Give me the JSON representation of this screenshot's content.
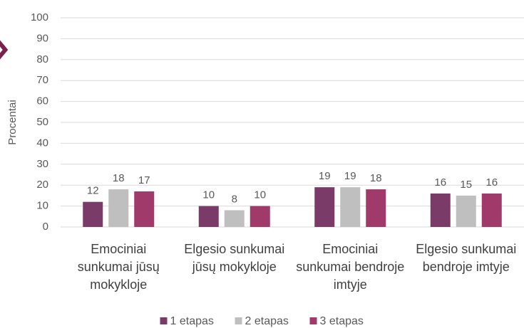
{
  "chart_data": {
    "type": "bar",
    "ylabel": "Procentai",
    "categories": [
      "Emociniai sunkumai jūsų mokykloje",
      "Elgesio sunkumai jūsų mokykloje",
      "Emociniai sunkumai bendroje imtyje",
      "Elgesio sunkumai bendroje imtyje"
    ],
    "series": [
      {
        "name": "1 etapas",
        "color": "#7b3b69",
        "values": [
          12,
          10,
          19,
          16
        ]
      },
      {
        "name": "2 etapas",
        "color": "#bfbfbf",
        "values": [
          18,
          8,
          19,
          15
        ]
      },
      {
        "name": "3 etapas",
        "color": "#a03a6b",
        "values": [
          17,
          10,
          18,
          16
        ]
      }
    ],
    "ylim": [
      0,
      100
    ],
    "yticks": [
      0,
      10,
      20,
      30,
      40,
      50,
      60,
      70,
      80,
      90,
      100
    ],
    "grid": true,
    "legend": "bottom"
  }
}
